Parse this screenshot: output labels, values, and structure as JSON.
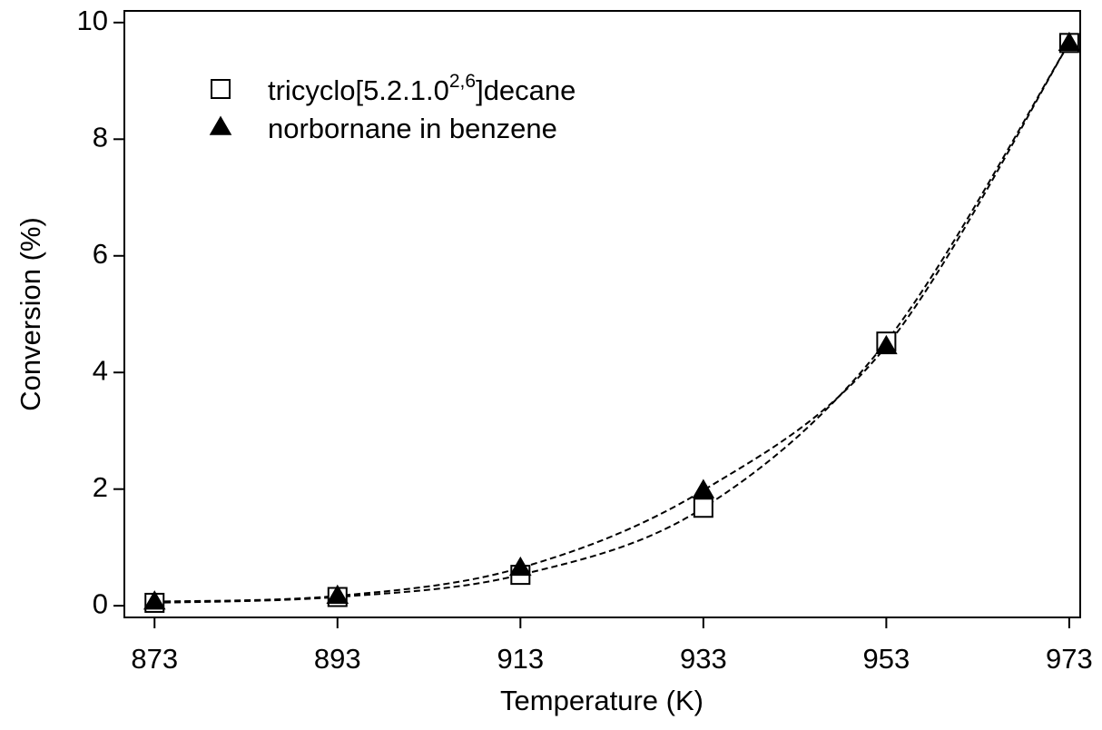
{
  "chart_data": {
    "type": "scatter",
    "x_label": "Temperature (K)",
    "y_label": "Conversion (%)",
    "xlim": [
      869.7,
      974.2
    ],
    "ylim": [
      -0.2,
      10.2
    ],
    "xticks": [
      873,
      893,
      913,
      933,
      953,
      973
    ],
    "yticks": [
      0,
      2,
      4,
      6,
      8,
      10
    ],
    "legend": "upper left",
    "fit_line_style": "dashed",
    "series": [
      {
        "name": [
          "tricyclo[5.2.1.0",
          "2,6",
          "]decane"
        ],
        "marker": "square-open",
        "color": "#000000",
        "x": [
          873,
          893,
          913,
          933,
          953,
          973
        ],
        "values": [
          0.05,
          0.15,
          0.53,
          1.68,
          4.53,
          9.65
        ]
      },
      {
        "name": "norbornane in benzene",
        "marker": "triangle-filled",
        "color": "#000000",
        "x": [
          873,
          893,
          913,
          933,
          953,
          973
        ],
        "values": [
          0.07,
          0.17,
          0.65,
          1.98,
          4.45,
          9.65
        ]
      }
    ]
  }
}
